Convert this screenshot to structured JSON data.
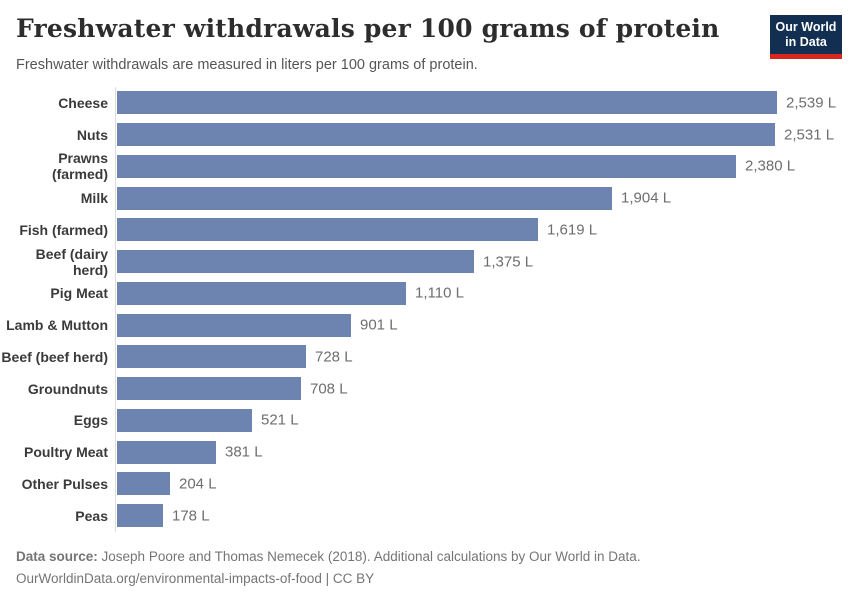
{
  "header": {
    "title": "Freshwater withdrawals per 100 grams of protein",
    "subtitle": "Freshwater withdrawals are measured in liters per 100 grams of protein.",
    "logo": {
      "line1": "Our World",
      "line2": "in Data"
    }
  },
  "chart_data": {
    "type": "bar",
    "orientation": "horizontal",
    "unit": "L",
    "title": "Freshwater withdrawals per 100 grams of protein",
    "xlabel": "",
    "ylabel": "",
    "xlim": [
      0,
      2539
    ],
    "grid": false,
    "bar_color": "#6d84b1",
    "categories": [
      "Cheese",
      "Nuts",
      "Prawns (farmed)",
      "Milk",
      "Fish (farmed)",
      "Beef (dairy herd)",
      "Pig Meat",
      "Lamb & Mutton",
      "Beef (beef herd)",
      "Groundnuts",
      "Eggs",
      "Poultry Meat",
      "Other Pulses",
      "Peas"
    ],
    "values": [
      2539,
      2531,
      2380,
      1904,
      1619,
      1375,
      1110,
      901,
      728,
      708,
      521,
      381,
      204,
      178
    ],
    "value_labels": [
      "2,539 L",
      "2,531 L",
      "2,380 L",
      "1,904 L",
      "1,619 L",
      "1,375 L",
      "1,110 L",
      "901 L",
      "728 L",
      "708 L",
      "521 L",
      "381 L",
      "204 L",
      "178 L"
    ]
  },
  "footer": {
    "datasource_label": "Data source:",
    "datasource_text": " Joseph Poore and Thomas Nemecek (2018). Additional calculations by Our World in Data.",
    "line2": "OurWorldinData.org/environmental-impacts-of-food | CC BY"
  },
  "colors": {
    "bar": "#6d84b1",
    "logo_navy": "#122f51",
    "logo_red": "#d8281e",
    "title_text": "#2d2d2d",
    "subtitle_text": "#555555",
    "category_label": "#3a3a3a",
    "value_label": "#6e6e6e",
    "footer_text": "#757575",
    "axis_line": "#dddddd"
  }
}
